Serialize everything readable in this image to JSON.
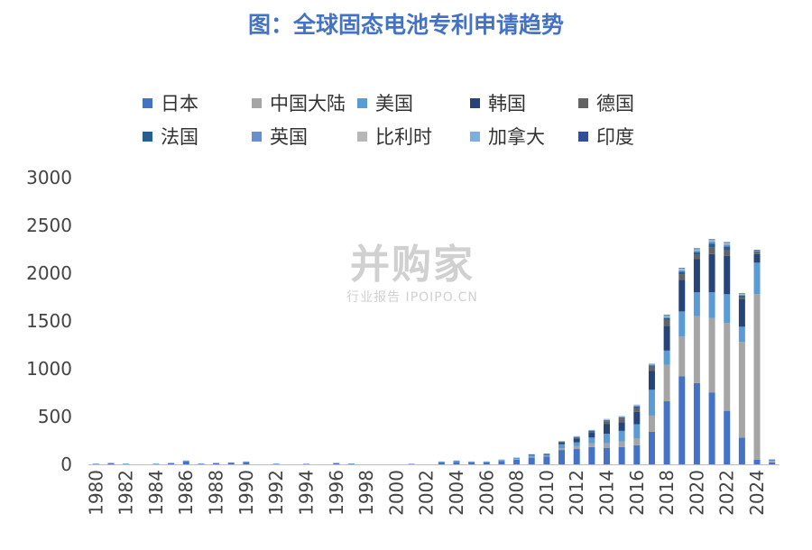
{
  "title": "图：全球固态电池专利申请趋势",
  "watermark": {
    "main": "并购家",
    "sub": "行业报告 IPOIPO.CN"
  },
  "colors": [
    "#4472c4",
    "#a5a5a5",
    "#5b9bd5",
    "#264478",
    "#636363",
    "#255e91",
    "#698ed0",
    "#b7b7b7",
    "#7cafdd",
    "#2f4f9d"
  ],
  "chart_data": {
    "type": "bar",
    "stacked": true,
    "ylim": [
      0,
      3000
    ],
    "yticks": [
      0,
      500,
      1000,
      1500,
      2000,
      2500,
      3000
    ],
    "xticks": [
      "1980",
      "1982",
      "1984",
      "1986",
      "1988",
      "1990",
      "1992",
      "1994",
      "1996",
      "1998",
      "2000",
      "2002",
      "2004",
      "2006",
      "2008",
      "2010",
      "2012",
      "2014",
      "2016",
      "2018",
      "2020",
      "2022",
      "2024"
    ],
    "categories": [
      "1980",
      "1981",
      "1982",
      "1983",
      "1984",
      "1985",
      "1986",
      "1987",
      "1988",
      "1989",
      "1990",
      "1991",
      "1992",
      "1993",
      "1994",
      "1995",
      "1996",
      "1997",
      "1998",
      "1999",
      "2000",
      "2001",
      "2002",
      "2003",
      "2004",
      "2005",
      "2006",
      "2007",
      "2008",
      "2009",
      "2010",
      "2011",
      "2012",
      "2013",
      "2014",
      "2015",
      "2016",
      "2017",
      "2018",
      "2019",
      "2020",
      "2021",
      "2022",
      "2023",
      "2024",
      "2025"
    ],
    "legend_position": "top",
    "grid": false,
    "series": [
      {
        "name": "日本",
        "values": [
          5,
          10,
          5,
          0,
          5,
          10,
          30,
          5,
          10,
          15,
          20,
          0,
          5,
          0,
          5,
          0,
          10,
          5,
          0,
          0,
          0,
          5,
          0,
          20,
          25,
          20,
          20,
          35,
          50,
          70,
          80,
          150,
          160,
          180,
          170,
          180,
          200,
          340,
          660,
          920,
          850,
          750,
          560,
          280,
          50,
          20
        ]
      },
      {
        "name": "中国大陆",
        "values": [
          0,
          0,
          0,
          0,
          0,
          0,
          0,
          0,
          0,
          0,
          0,
          0,
          0,
          0,
          0,
          0,
          0,
          0,
          0,
          0,
          0,
          0,
          0,
          0,
          0,
          0,
          0,
          5,
          5,
          10,
          10,
          20,
          30,
          40,
          50,
          60,
          70,
          170,
          380,
          420,
          700,
          780,
          920,
          1000,
          1730,
          15
        ]
      },
      {
        "name": "美国",
        "values": [
          2,
          5,
          2,
          0,
          2,
          5,
          10,
          3,
          5,
          5,
          10,
          0,
          2,
          0,
          0,
          0,
          5,
          3,
          0,
          0,
          0,
          0,
          0,
          10,
          15,
          10,
          10,
          10,
          15,
          20,
          10,
          40,
          40,
          60,
          100,
          110,
          150,
          270,
          150,
          260,
          250,
          270,
          300,
          160,
          330,
          10
        ]
      },
      {
        "name": "韩国",
        "values": [
          0,
          0,
          0,
          0,
          0,
          0,
          0,
          0,
          0,
          0,
          0,
          0,
          0,
          0,
          0,
          0,
          0,
          0,
          0,
          0,
          0,
          0,
          0,
          0,
          0,
          0,
          0,
          0,
          0,
          5,
          10,
          20,
          40,
          50,
          100,
          90,
          130,
          200,
          260,
          330,
          350,
          400,
          400,
          290,
          90,
          5
        ]
      },
      {
        "name": "德国",
        "values": [
          0,
          0,
          0,
          0,
          0,
          0,
          0,
          0,
          0,
          0,
          0,
          0,
          0,
          0,
          0,
          0,
          0,
          0,
          0,
          0,
          0,
          0,
          0,
          0,
          0,
          0,
          0,
          0,
          0,
          0,
          0,
          5,
          10,
          10,
          30,
          40,
          40,
          40,
          60,
          60,
          40,
          70,
          60,
          20,
          20,
          0
        ]
      },
      {
        "name": "法国",
        "values": [
          0,
          0,
          0,
          0,
          0,
          0,
          0,
          0,
          0,
          0,
          0,
          0,
          0,
          0,
          0,
          0,
          0,
          0,
          0,
          0,
          0,
          0,
          0,
          0,
          0,
          0,
          0,
          0,
          0,
          0,
          0,
          5,
          5,
          10,
          10,
          10,
          15,
          15,
          20,
          25,
          30,
          40,
          40,
          15,
          10,
          0
        ]
      },
      {
        "name": "英国",
        "values": [
          0,
          0,
          0,
          0,
          0,
          0,
          0,
          0,
          0,
          0,
          0,
          0,
          0,
          0,
          0,
          0,
          0,
          0,
          0,
          0,
          0,
          0,
          0,
          0,
          0,
          0,
          0,
          0,
          0,
          0,
          0,
          0,
          5,
          5,
          5,
          5,
          10,
          10,
          15,
          15,
          15,
          20,
          20,
          10,
          5,
          0
        ]
      },
      {
        "name": "比利时",
        "values": [
          0,
          0,
          0,
          0,
          0,
          0,
          0,
          0,
          0,
          0,
          0,
          0,
          0,
          0,
          0,
          0,
          0,
          0,
          0,
          0,
          0,
          0,
          0,
          0,
          0,
          0,
          0,
          0,
          0,
          0,
          0,
          0,
          0,
          0,
          5,
          5,
          5,
          5,
          5,
          10,
          10,
          10,
          10,
          5,
          0,
          0
        ]
      },
      {
        "name": "加拿大",
        "values": [
          0,
          0,
          0,
          0,
          0,
          0,
          0,
          0,
          0,
          0,
          0,
          0,
          0,
          0,
          0,
          0,
          0,
          0,
          0,
          0,
          0,
          0,
          0,
          0,
          0,
          0,
          0,
          0,
          0,
          0,
          0,
          0,
          5,
          5,
          5,
          5,
          5,
          5,
          10,
          10,
          10,
          10,
          10,
          5,
          5,
          0
        ]
      },
      {
        "name": "印度",
        "values": [
          0,
          0,
          0,
          0,
          0,
          0,
          0,
          0,
          0,
          0,
          0,
          0,
          0,
          0,
          0,
          0,
          0,
          0,
          0,
          0,
          0,
          0,
          0,
          0,
          0,
          0,
          0,
          0,
          0,
          0,
          0,
          0,
          0,
          0,
          0,
          0,
          0,
          0,
          5,
          5,
          5,
          5,
          5,
          5,
          5,
          0
        ]
      }
    ]
  }
}
